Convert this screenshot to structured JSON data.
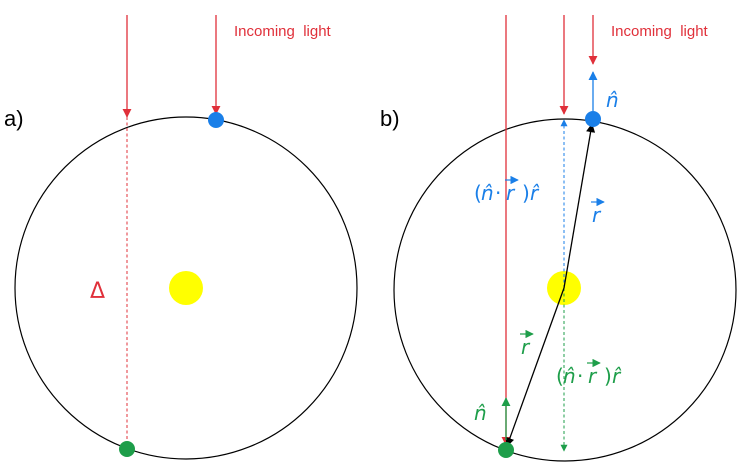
{
  "colors": {
    "red": "#e0303a",
    "blue": "#1a7fe8",
    "green": "#1e9e4a",
    "yellow": "#ffff00",
    "black": "#000000"
  },
  "panel_a": {
    "label": "a)",
    "incoming_light": "Incoming  light",
    "delta": "Δ"
  },
  "panel_b": {
    "label": "b)",
    "incoming_light": "Incoming  light",
    "n_hat_blue": "n̂",
    "n_hat_green": "n̂",
    "r_blue": "r",
    "r_green": "r",
    "proj_blue_open": "(",
    "proj_blue_n": "n̂",
    "proj_blue_dot": "·",
    "proj_blue_r": "r",
    "proj_blue_close": ")",
    "proj_blue_rhat": "r̂",
    "proj_green_open": "(",
    "proj_green_n": "n̂",
    "proj_green_dot": "·",
    "proj_green_r": "r",
    "proj_green_close": ")",
    "proj_green_rhat": "r̂"
  }
}
